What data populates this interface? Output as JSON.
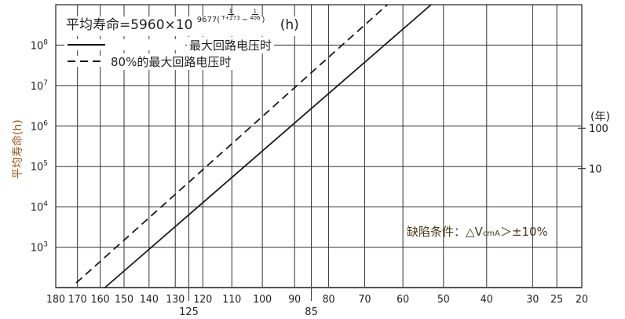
{
  "chart_data": {
    "type": "line",
    "title": {
      "prefix": "平均寿命=5960×10",
      "exponent_coef": "9677(",
      "frac1_num": "1",
      "frac1_den": "T+273",
      "minus": "−",
      "frac2_num": "1",
      "frac2_den": "406",
      "exponent_close": ")",
      "unit": "(h)"
    },
    "ylabel": "平均寿命(h)",
    "xlabel": "",
    "x_scale": "reciprocal-kelvin",
    "xlim": [
      180,
      20
    ],
    "x_ticks": [
      180,
      170,
      160,
      150,
      140,
      130,
      120,
      110,
      100,
      90,
      80,
      70,
      60,
      50,
      40,
      30,
      25,
      20
    ],
    "x_ticks_lower": [
      125,
      85
    ],
    "y_scale": "log",
    "ylim": [
      100,
      1000000000
    ],
    "y_ticks": [
      {
        "value": 1000,
        "base": "10",
        "exp": "3"
      },
      {
        "value": 10000,
        "base": "10",
        "exp": "4"
      },
      {
        "value": 100000,
        "base": "10",
        "exp": "5"
      },
      {
        "value": 1000000,
        "base": "10",
        "exp": "6"
      },
      {
        "value": 10000000,
        "base": "10",
        "exp": "7"
      },
      {
        "value": 100000000,
        "base": "10",
        "exp": "8"
      }
    ],
    "y2_unit": "(年)",
    "y2_ticks": [
      {
        "years": 100,
        "label": "100"
      },
      {
        "years": 10,
        "label": "10"
      }
    ],
    "grid": true,
    "legend_position": "top-left",
    "series": [
      {
        "name": "最大回路电压时",
        "style": "solid",
        "points": [
          [
            158,
            100
          ],
          [
            53,
            1000000000
          ]
        ]
      },
      {
        "name": "80%的最大回路电压时",
        "style": "dashed",
        "points": [
          [
            170.6,
            130
          ],
          [
            64,
            1000000000
          ]
        ]
      }
    ],
    "annotation": {
      "prefix": "缺陷条件：△V",
      "sub": "cmA",
      "suffix": "＞±10%"
    },
    "colors": {
      "line": "#1a1a1a",
      "grid": "#333333",
      "ylabel": "#a05a20",
      "annotation": "#4a3a1a"
    }
  }
}
